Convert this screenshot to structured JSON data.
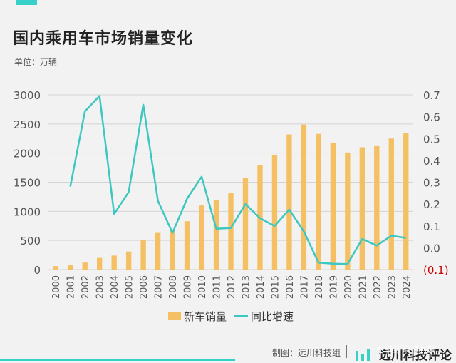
{
  "title": "国内乘用车市场销量变化",
  "unit": "单位：万辆",
  "footer": {
    "credit": "制图：远川科技组",
    "brand": "远川科技评论",
    "watermark": "车辆新宗设有联"
  },
  "colors": {
    "bar": "#f5c063",
    "line": "#3cc7c0",
    "negative_tick": "#cc0000",
    "accent": "#38d1c9",
    "grid": "#d4d4d4"
  },
  "chart_data": {
    "type": "bar",
    "categories": [
      "2000",
      "2001",
      "2002",
      "2003",
      "2004",
      "2005",
      "2006",
      "2007",
      "2008",
      "2009",
      "2010",
      "2011",
      "2012",
      "2013",
      "2014",
      "2015",
      "2016",
      "2017",
      "2018",
      "2019",
      "2020",
      "2021",
      "2022",
      "2023",
      "2024"
    ],
    "y_left": {
      "ylim": [
        0,
        3000
      ],
      "ticks": [
        "0",
        "500",
        "1000",
        "1500",
        "2000",
        "2500",
        "3000"
      ]
    },
    "y_right": {
      "ylim": [
        -0.1,
        0.7
      ],
      "ticks": [
        "(0.1)",
        "0.0",
        "0.1",
        "0.2",
        "0.3",
        "0.4",
        "0.5",
        "0.6",
        "0.7"
      ]
    },
    "grid": true,
    "legend_position": "bottom-center",
    "series": [
      {
        "name": "新车销量",
        "type": "bar",
        "axis": "left",
        "values": [
          60,
          75,
          120,
          200,
          240,
          310,
          510,
          630,
          680,
          830,
          1100,
          1200,
          1310,
          1580,
          1790,
          1970,
          2320,
          2490,
          2330,
          2170,
          2010,
          2100,
          2120,
          2250,
          2350
        ]
      },
      {
        "name": "同比增速",
        "type": "line",
        "axis": "right",
        "values": [
          null,
          0.28,
          0.625,
          0.695,
          0.155,
          0.255,
          0.655,
          0.215,
          0.068,
          0.225,
          0.325,
          0.087,
          0.09,
          0.2,
          0.135,
          0.1,
          0.175,
          0.075,
          -0.068,
          -0.073,
          -0.075,
          0.04,
          0.01,
          0.055,
          0.045
        ]
      }
    ]
  }
}
